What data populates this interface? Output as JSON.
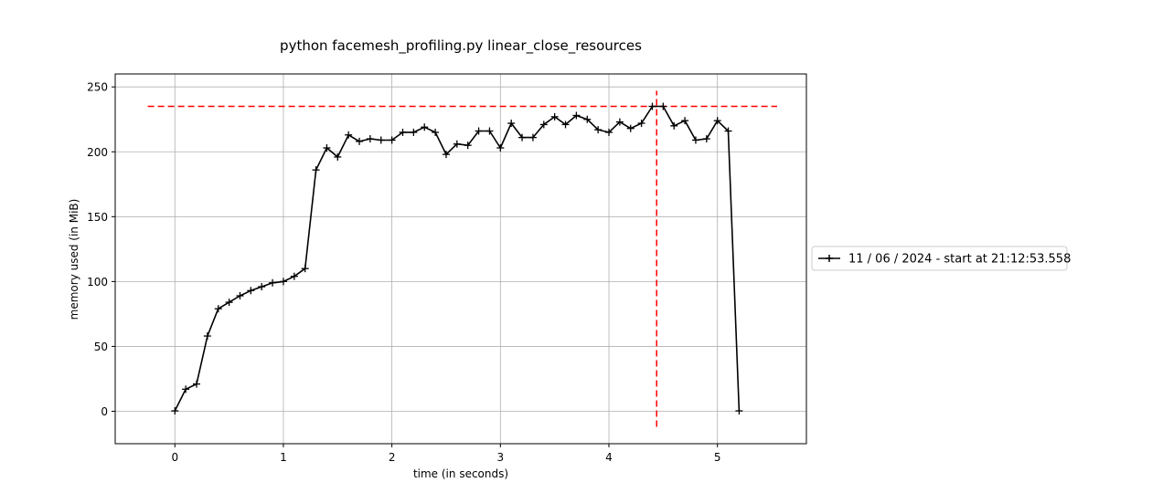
{
  "chart_data": {
    "type": "line",
    "title": "python facemesh_profiling.py linear_close_resources",
    "xlabel": "time (in seconds)",
    "ylabel": "memory used (in MiB)",
    "xlim": [
      -0.55,
      5.82
    ],
    "ylim": [
      -25,
      260
    ],
    "xticks": [
      0,
      1,
      2,
      3,
      4,
      5
    ],
    "yticks": [
      0,
      50,
      100,
      150,
      200,
      250
    ],
    "grid": true,
    "legend_position": "center-right",
    "series": [
      {
        "name": "11 / 06 / 2024 - start at 21:12:53.558",
        "color": "#000000",
        "marker": "plus",
        "x": [
          0.0,
          0.1,
          0.2,
          0.3,
          0.4,
          0.5,
          0.6,
          0.7,
          0.8,
          0.9,
          1.0,
          1.1,
          1.2,
          1.3,
          1.4,
          1.5,
          1.6,
          1.7,
          1.8,
          1.9,
          2.0,
          2.1,
          2.2,
          2.3,
          2.4,
          2.5,
          2.6,
          2.7,
          2.8,
          2.9,
          3.0,
          3.1,
          3.2,
          3.3,
          3.4,
          3.5,
          3.6,
          3.7,
          3.8,
          3.9,
          4.0,
          4.1,
          4.2,
          4.3,
          4.4,
          4.5,
          4.6,
          4.7,
          4.8,
          4.9,
          5.0,
          5.1,
          5.2
        ],
        "y": [
          0.3,
          17,
          21,
          58,
          79,
          84,
          89,
          93,
          96,
          99,
          100,
          104,
          110,
          186,
          203,
          196,
          213,
          208,
          210,
          209,
          209,
          215,
          215,
          219,
          215,
          198,
          206,
          205,
          216,
          216,
          203,
          222,
          211,
          211,
          221,
          227,
          221,
          228,
          225,
          217,
          215,
          223,
          218,
          222,
          235,
          235,
          220,
          224,
          209,
          210,
          224,
          216,
          0.3
        ]
      }
    ],
    "annotations": [
      {
        "type": "hline",
        "y": 235,
        "x_from": -0.25,
        "x_to": 5.55,
        "color": "#ff0000",
        "style": "dashed"
      },
      {
        "type": "vline",
        "x": 4.44,
        "y_from": -12,
        "y_to": 247,
        "color": "#ff0000",
        "style": "dashed"
      }
    ]
  }
}
